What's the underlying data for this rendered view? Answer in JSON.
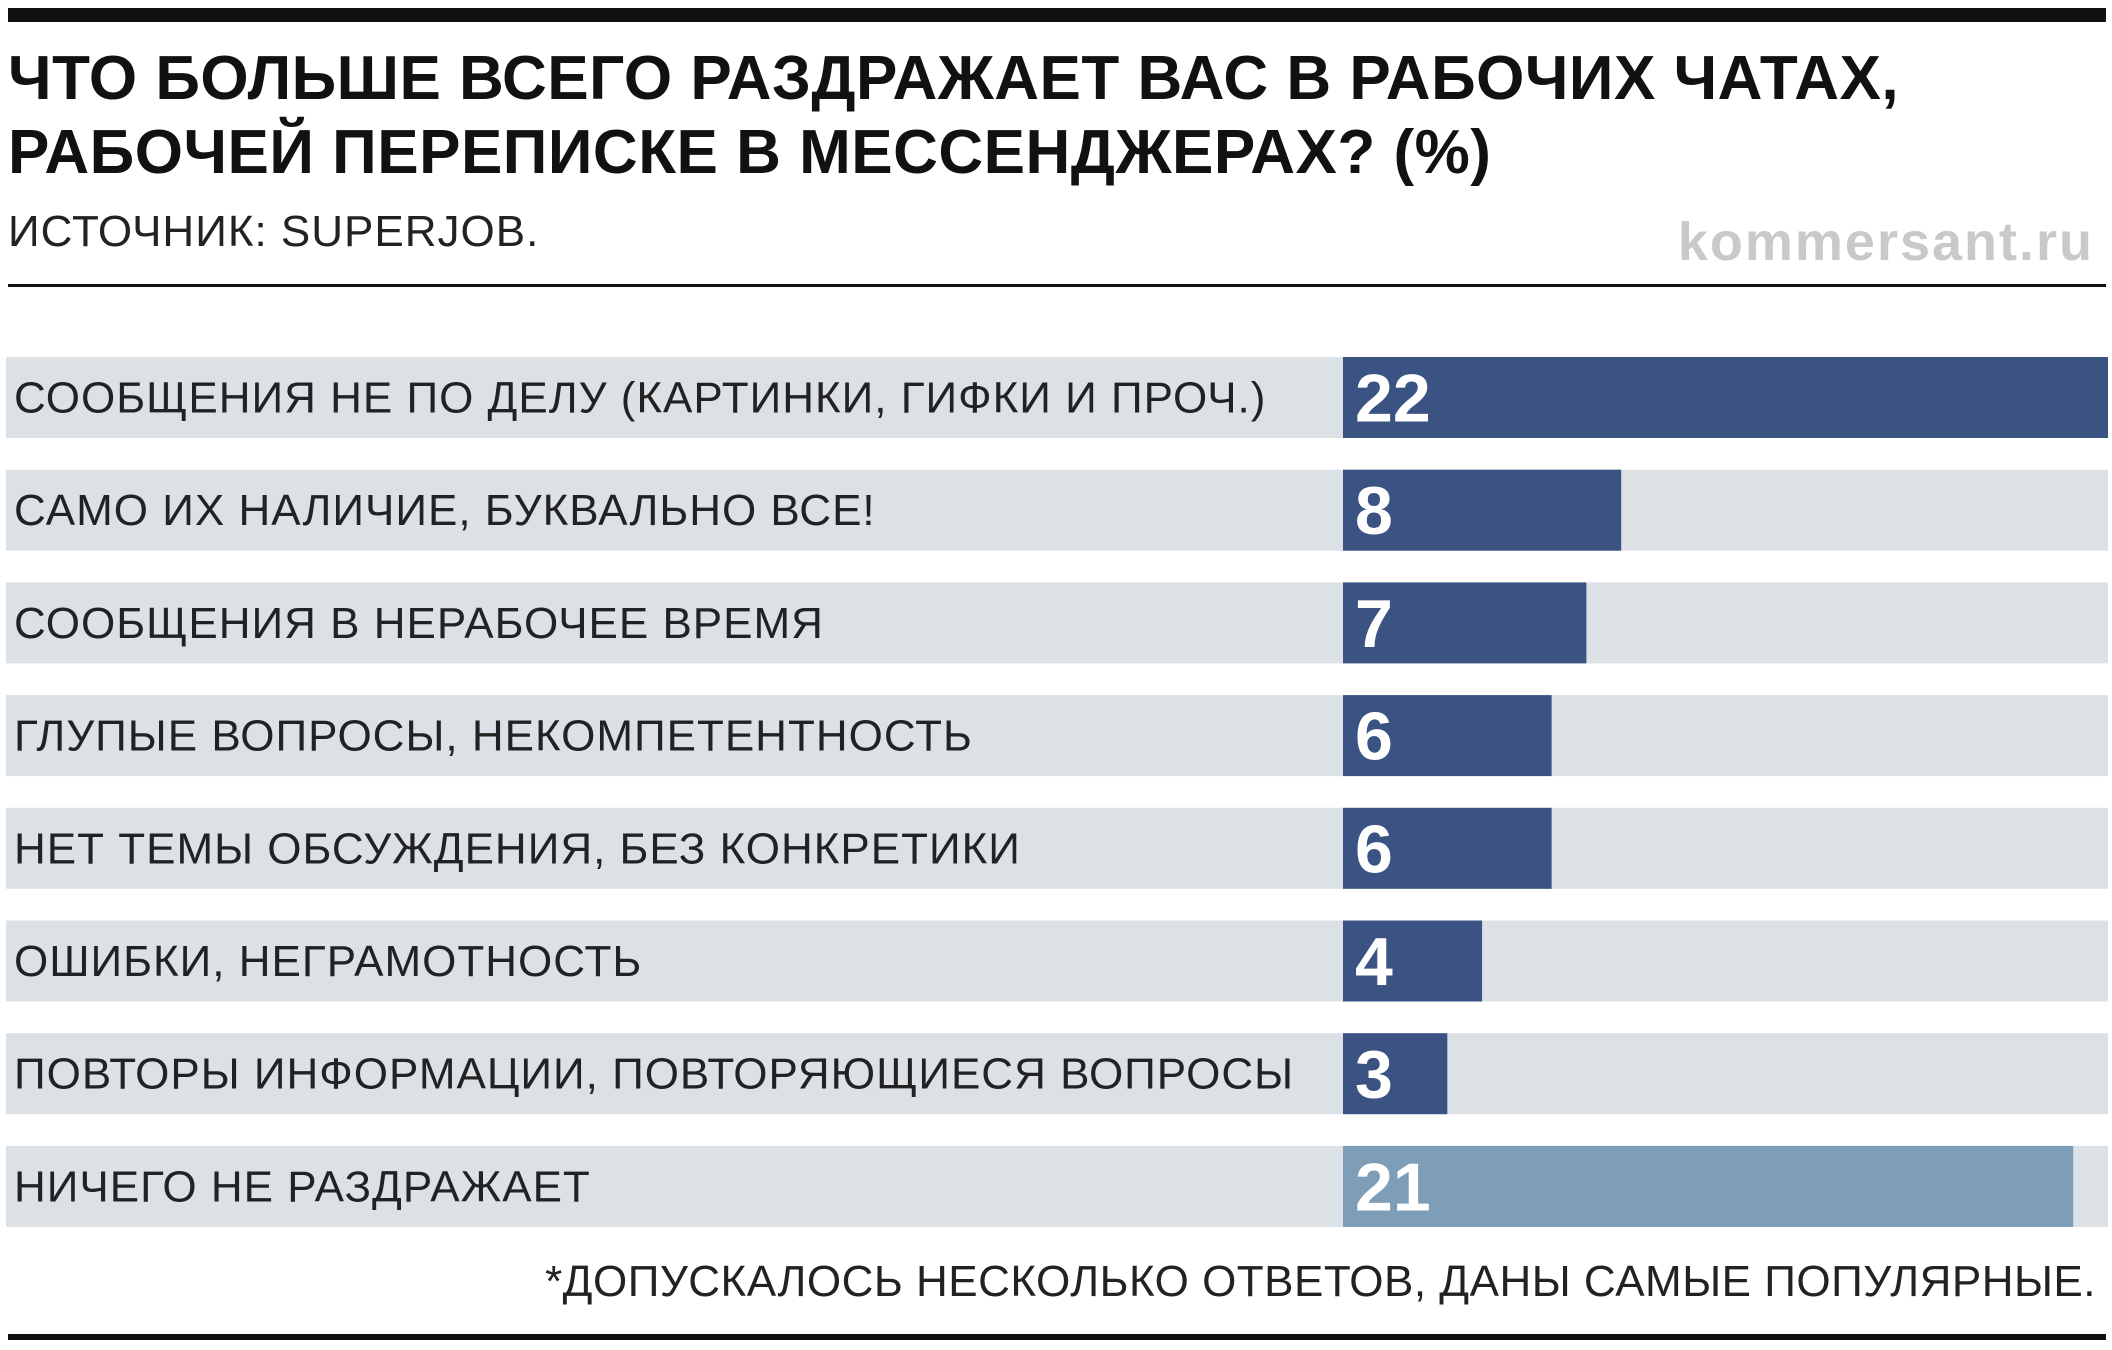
{
  "header": {
    "title": "ЧТО БОЛЬШЕ ВСЕГО РАЗДРАЖАЕТ ВАС В РАБОЧИХ ЧАТАХ, РАБОЧЕЙ ПЕРЕПИСКЕ В МЕССЕНДЖЕРАХ? (%)",
    "source": "ИСТОЧНИК: SUPERJOB.",
    "brand": "kommersant.ru"
  },
  "footer": {
    "note": "*ДОПУСКАЛОСЬ НЕСКОЛЬКО ОТВЕТОВ, ДАНЫ САМЫЕ ПОПУЛЯРНЫЕ."
  },
  "colors": {
    "row_background": "#dce1e6",
    "bar_primary": "#3b5382",
    "bar_highlight": "#7e9db6",
    "bar_value_text": "#ffffff"
  },
  "chart_data": {
    "type": "bar",
    "orientation": "horizontal",
    "title": "ЧТО БОЛЬШЕ ВСЕГО РАЗДРАЖАЕТ ВАС В РАБОЧИХ ЧАТАХ, РАБОЧЕЙ ПЕРЕПИСКЕ В МЕССЕНДЖЕРАХ? (%)",
    "xlabel": "",
    "ylabel": "",
    "xlim": [
      0,
      22
    ],
    "grid": false,
    "legend": "none",
    "categories": [
      "СООБЩЕНИЯ НЕ ПО ДЕЛУ (КАРТИНКИ, ГИФКИ И ПРОЧ.)",
      "САМО ИХ НАЛИЧИЕ, БУКВАЛЬНО ВСЕ!",
      "СООБЩЕНИЯ В НЕРАБОЧЕЕ ВРЕМЯ",
      "ГЛУПЫЕ ВОПРОСЫ, НЕКОМПЕТЕНТНОСТЬ",
      "НЕТ ТЕМЫ ОБСУЖДЕНИЯ, БЕЗ КОНКРЕТИКИ",
      "ОШИБКИ, НЕГРАМОТНОСТЬ",
      "ПОВТОРЫ ИНФОРМАЦИИ, ПОВТОРЯЮЩИЕСЯ ВОПРОСЫ",
      "НИЧЕГО НЕ РАЗДРАЖАЕТ"
    ],
    "values": [
      22,
      8,
      7,
      6,
      6,
      4,
      3,
      21
    ],
    "highlight": [
      false,
      false,
      false,
      false,
      false,
      false,
      false,
      true
    ]
  }
}
